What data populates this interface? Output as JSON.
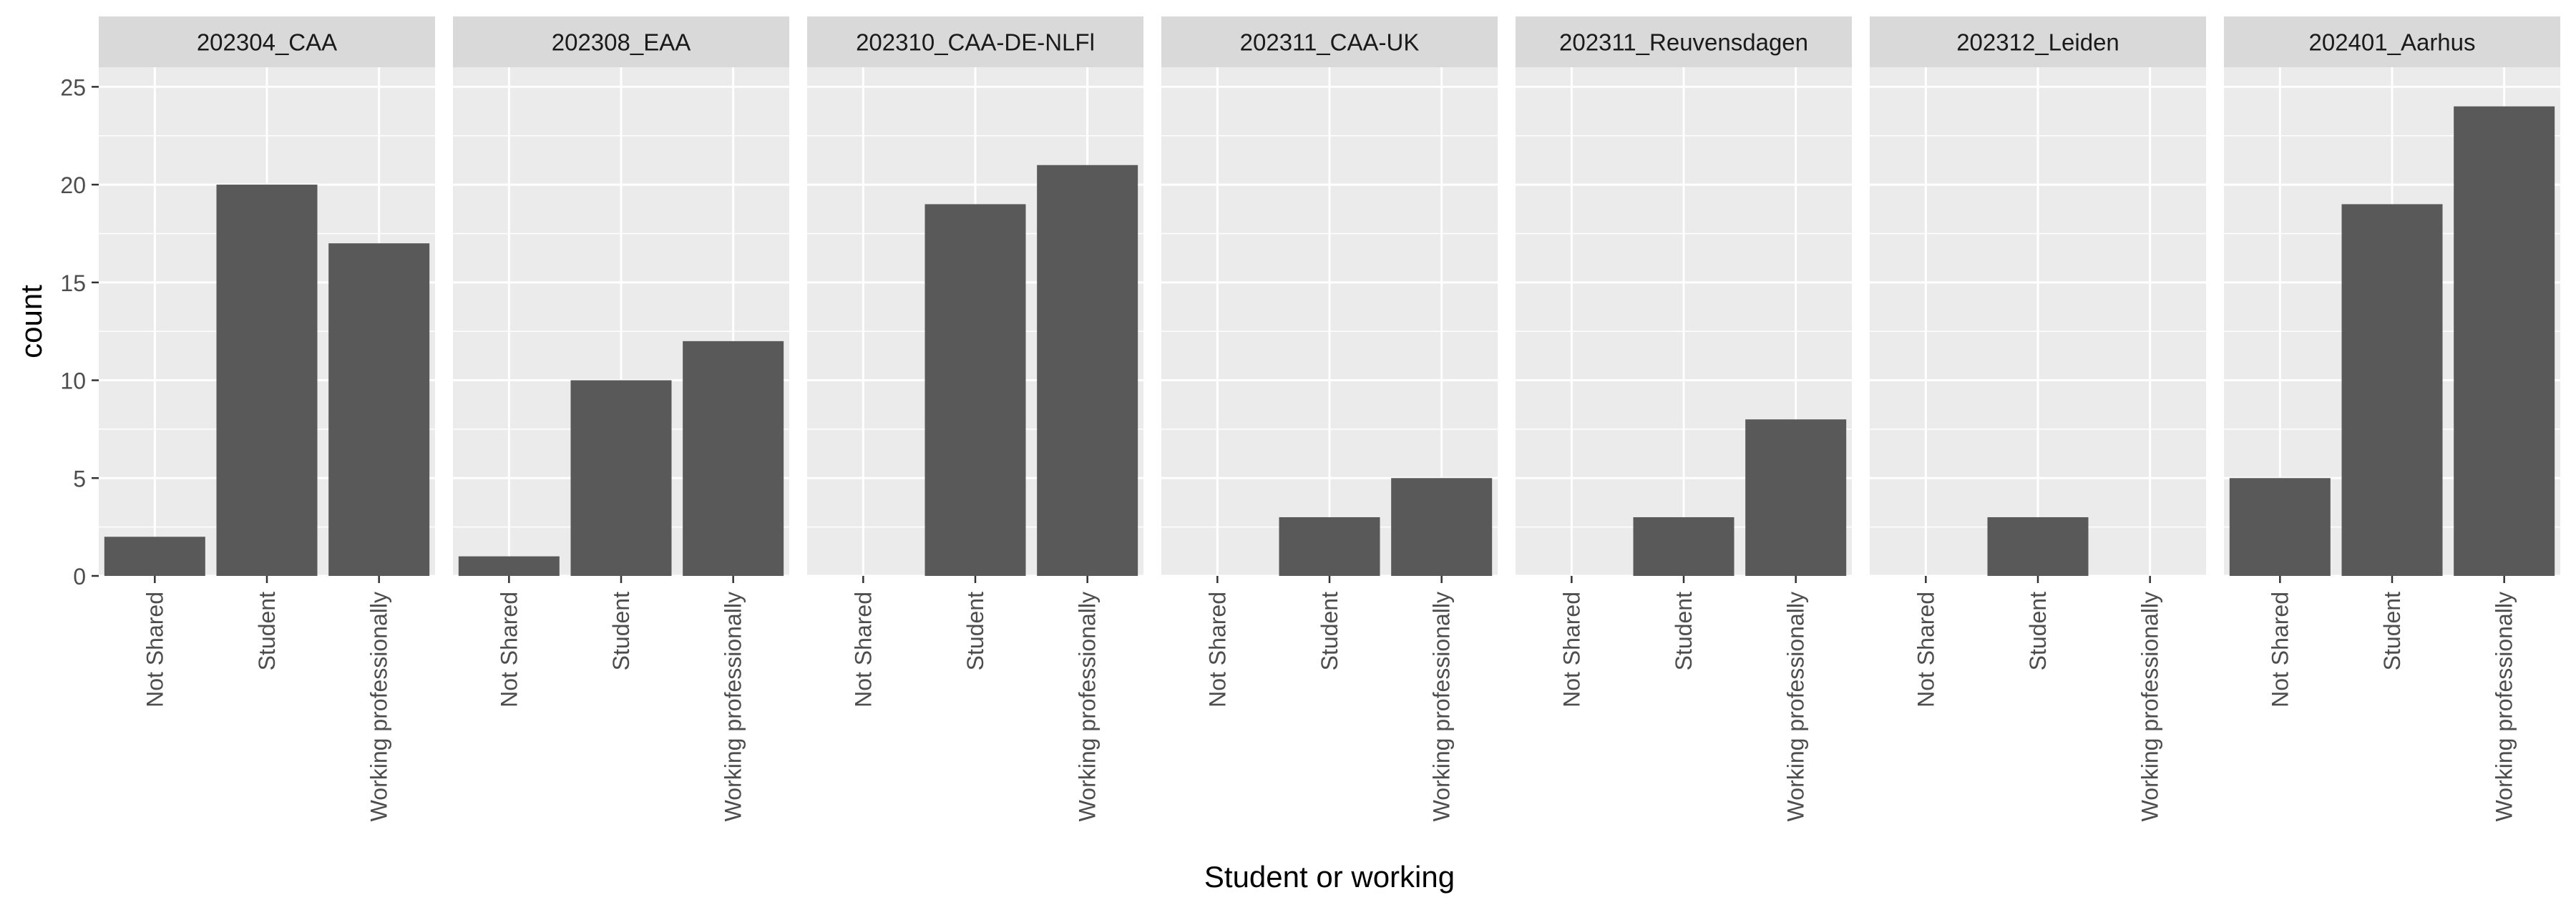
{
  "chart_data": {
    "type": "bar",
    "facet_by": "event",
    "xlabel": "Student or working",
    "ylabel": "count",
    "ylim": [
      0,
      26
    ],
    "yticks": [
      0,
      5,
      10,
      15,
      20,
      25
    ],
    "categories": [
      "Not Shared",
      "Student",
      "Working professionally"
    ],
    "grid": true,
    "legend": "none",
    "colors": {
      "bar": "#595959",
      "panel": "#ebebeb",
      "strip": "#d9d9d9",
      "grid": "#ffffff",
      "text": "#4d4d4d",
      "title": "#000000"
    },
    "panels": [
      {
        "title": "202304_CAA",
        "values": [
          2,
          20,
          17
        ]
      },
      {
        "title": "202308_EAA",
        "values": [
          1,
          10,
          12
        ]
      },
      {
        "title": "202310_CAA-DE-NLFl",
        "values": [
          0,
          19,
          21
        ]
      },
      {
        "title": "202311_CAA-UK",
        "values": [
          0,
          3,
          5
        ]
      },
      {
        "title": "202311_Reuvensdagen",
        "values": [
          0,
          3,
          8
        ]
      },
      {
        "title": "202312_Leiden",
        "values": [
          0,
          3,
          0
        ]
      },
      {
        "title": "202401_Aarhus",
        "values": [
          5,
          19,
          24
        ]
      }
    ]
  }
}
